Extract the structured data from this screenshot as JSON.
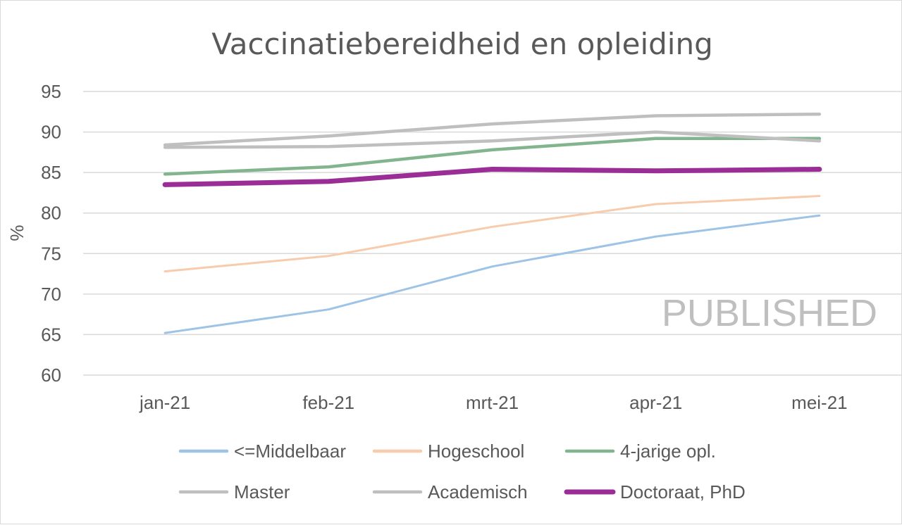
{
  "chart_data": {
    "type": "line",
    "title": "Vaccinatiebereidheid en opleiding",
    "ylabel": "%",
    "xlabel": "",
    "ylim": [
      60,
      95
    ],
    "yticks": [
      60,
      65,
      70,
      75,
      80,
      85,
      90,
      95
    ],
    "grid": true,
    "legend_position": "bottom",
    "categories": [
      "jan-21",
      "feb-21",
      "mrt-21",
      "apr-21",
      "mei-21"
    ],
    "series": [
      {
        "name": "<=Middelbaar",
        "color": "#9dc3e6",
        "width": "thin",
        "values": [
          65.2,
          68.1,
          73.4,
          77.1,
          79.7
        ]
      },
      {
        "name": "Hogeschool",
        "color": "#f8cbad",
        "width": "thin",
        "values": [
          72.8,
          74.7,
          78.3,
          81.1,
          82.1
        ]
      },
      {
        "name": "4-jarige opl.",
        "color": "#82b58e",
        "width": "medium",
        "values": [
          84.8,
          85.7,
          87.8,
          89.2,
          89.2
        ]
      },
      {
        "name": "Master",
        "color": "#bfbfbf",
        "width": "medium",
        "values": [
          88.4,
          89.5,
          91.0,
          92.0,
          92.2
        ]
      },
      {
        "name": "Academisch",
        "color": "#bfbfbf",
        "width": "medium",
        "values": [
          88.1,
          88.2,
          88.9,
          90.0,
          88.9
        ]
      },
      {
        "name": "Doctoraat, PhD",
        "color": "#9b2d96",
        "width": "thick",
        "values": [
          83.5,
          83.9,
          85.4,
          85.2,
          85.4
        ]
      }
    ],
    "watermark": "PUBLISHED"
  }
}
